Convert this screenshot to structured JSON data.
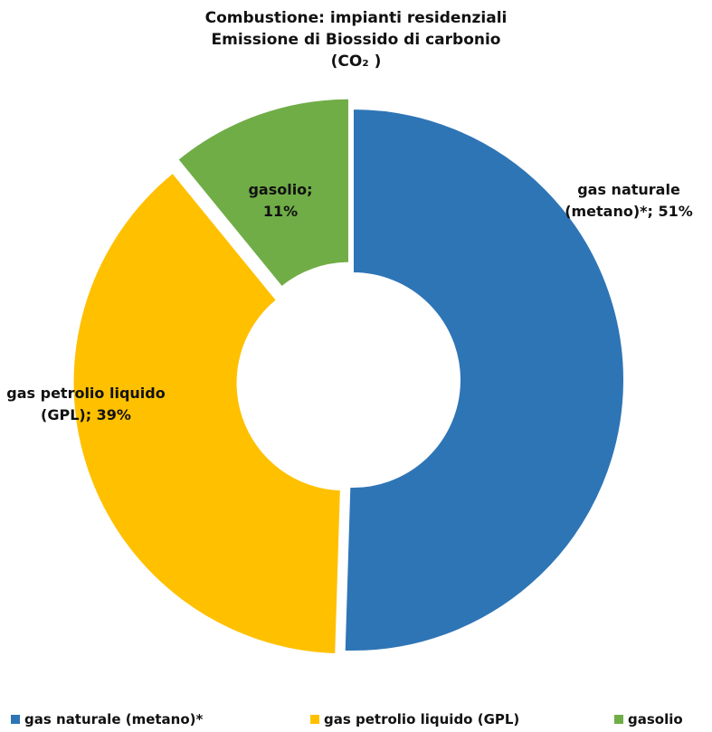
{
  "chart_data": {
    "type": "pie",
    "title": "Combustione: impianti residenziali",
    "subtitle": "Emissione di Biossido di carbonio",
    "subtitle2": "(CO₂ )",
    "categories": [
      "gas naturale (metano)*",
      "gas petrolio liquido (GPL)",
      "gasolio"
    ],
    "values": [
      51,
      39,
      11
    ],
    "colors": [
      "#2E75B6",
      "#FFC000",
      "#70AD47"
    ],
    "data_labels": [
      [
        "gas naturale",
        "(metano)*; 51%"
      ],
      [
        "gas petrolio liquido",
        "(GPL); 39%"
      ],
      [
        "gasolio;",
        "11%"
      ]
    ],
    "legend": "bottom",
    "donut": true
  }
}
